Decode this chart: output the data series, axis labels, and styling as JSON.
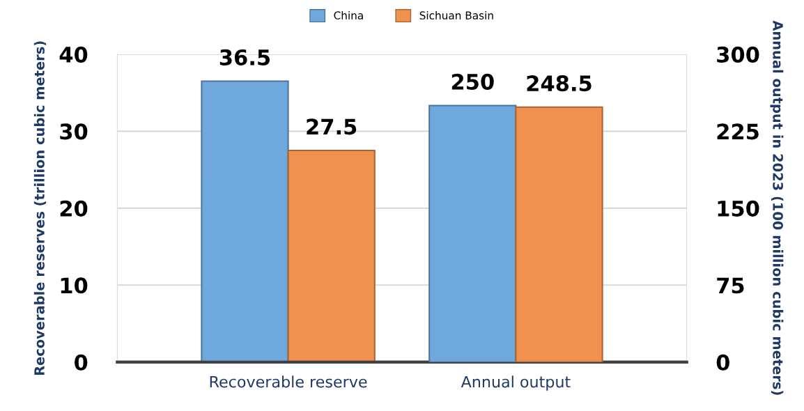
{
  "chart_data": {
    "type": "bar",
    "categories": [
      "Recoverable reserve",
      "Annual output"
    ],
    "series": [
      {
        "name": "China",
        "color": "#6fa8dc",
        "values": [
          36.5,
          null
        ]
      },
      {
        "name": "Sichuan Basin",
        "color": "#f0914f",
        "values": [
          27.5,
          null
        ]
      },
      {
        "color": "#6fa8dc",
        "values": [
          null,
          250
        ],
        "axis": "y2"
      },
      {
        "color": "#f0914f",
        "values": [
          null,
          248.5
        ],
        "axis": "y2"
      }
    ],
    "ylabel": "Recoverable reserves (trillion cubic meters)",
    "y2label": "Annual output in 2023 (100 million cubic meters)",
    "ylim": [
      0,
      40
    ],
    "yticks": [
      0,
      10,
      20,
      30,
      40
    ],
    "y2lim": [
      0,
      300
    ],
    "y2ticks": [
      0,
      75,
      150,
      225,
      300
    ],
    "grid": "y",
    "legend": "top",
    "data_labels": true
  }
}
